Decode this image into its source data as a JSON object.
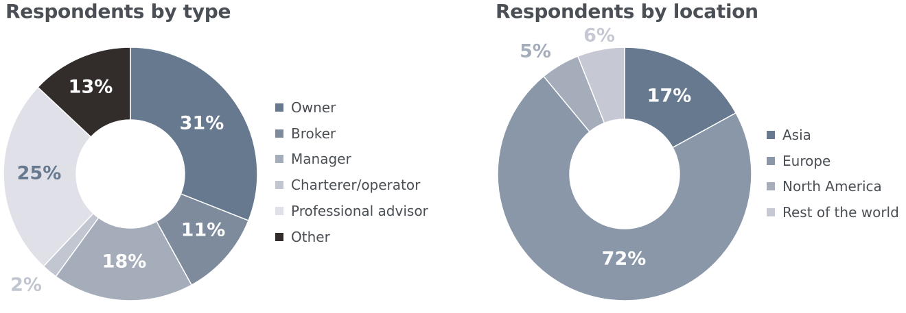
{
  "chart_data": [
    {
      "type": "pie",
      "title": "Respondents by type",
      "categories": [
        "Owner",
        "Broker",
        "Manager",
        "Charterer/operator",
        "Professional advisor",
        "Other"
      ],
      "values": [
        31,
        11,
        18,
        2,
        25,
        13
      ],
      "labels": [
        "31%",
        "11%",
        "18%",
        "2%",
        "25%",
        "13%"
      ],
      "colors": [
        "#66798e",
        "#7d8b9d",
        "#a5adbb",
        "#c2c6d0",
        "#e0e1e8",
        "#322d2b"
      ],
      "label_colors": [
        "#ffffff",
        "#ffffff",
        "#ffffff",
        "#c2c6d0",
        "#66798e",
        "#ffffff"
      ],
      "legend": "right",
      "donut": true
    },
    {
      "type": "pie",
      "title": "Respondents by location",
      "categories": [
        "Asia",
        "Europe",
        "North America",
        "Rest of the world"
      ],
      "values": [
        17,
        72,
        5,
        6
      ],
      "labels": [
        "17%",
        "72%",
        "5%",
        "6%"
      ],
      "colors": [
        "#66798e",
        "#8a97a8",
        "#a5adbb",
        "#c6c9d3"
      ],
      "label_colors": [
        "#ffffff",
        "#ffffff",
        "#a5adbb",
        "#c6c9d3"
      ],
      "legend": "right",
      "donut": true
    }
  ]
}
